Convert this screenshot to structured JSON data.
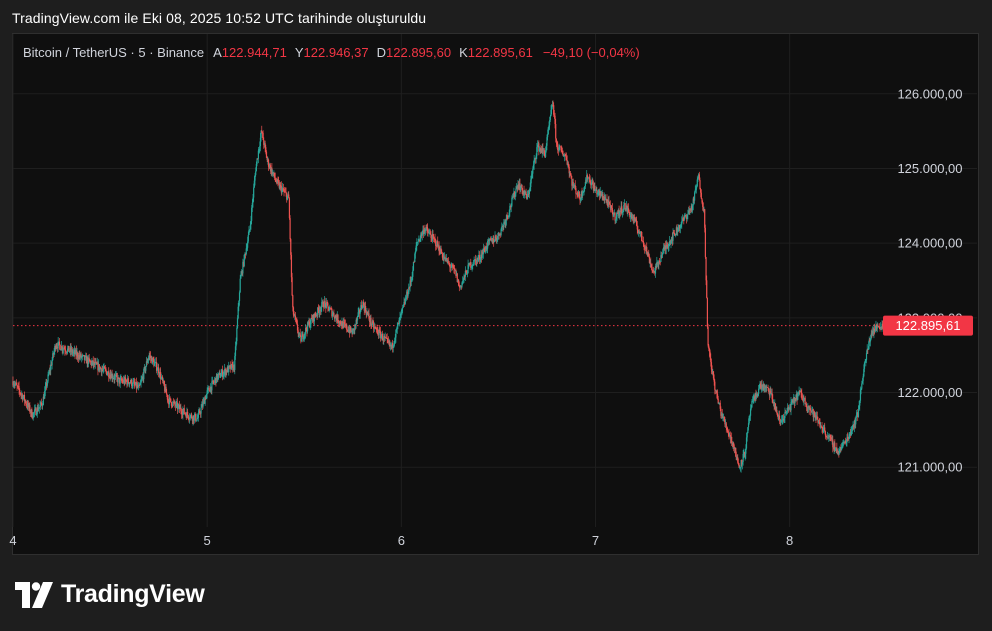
{
  "caption": "TradingView.com ile Eki 08, 2025 10:52 UTC tarihinde oluşturuldu",
  "legend": {
    "symbol": "Bitcoin / TetherUS · 5 · Binance",
    "open_label": "A",
    "open_value": "122.944,71",
    "high_label": "Y",
    "high_value": "122.946,37",
    "low_label": "D",
    "low_value": "122.895,60",
    "close_label": "K",
    "close_value": "122.895,61",
    "change": "−49,10 (−0,04%)"
  },
  "brand": {
    "name": "TradingView"
  },
  "colors": {
    "up": "#26a69a",
    "down": "#ef5350",
    "price_line": "#f23645",
    "grid": "#1f1f1f",
    "background": "#0f0f0f"
  },
  "chart_data": {
    "type": "candlestick",
    "symbol": "Bitcoin / TetherUS",
    "interval": "5",
    "exchange": "Binance",
    "x_ticks": [
      "4",
      "5",
      "6",
      "7",
      "8"
    ],
    "y_ticks": [
      "121.000,00",
      "122.000,00",
      "123.000,00",
      "124.000,00",
      "125.000,00",
      "126.000,00"
    ],
    "y_tick_values": [
      121000,
      122000,
      123000,
      124000,
      125000,
      126000
    ],
    "ylim": [
      120200,
      126800
    ],
    "xlim_days": [
      4.0,
      8.97
    ],
    "last_price": 122895.61,
    "last_price_label": "122.895,61",
    "grid": true,
    "price_path": [
      [
        4.0,
        122150
      ],
      [
        4.05,
        121950
      ],
      [
        4.1,
        121700
      ],
      [
        4.15,
        121850
      ],
      [
        4.22,
        122650
      ],
      [
        4.3,
        122550
      ],
      [
        4.4,
        122400
      ],
      [
        4.5,
        122250
      ],
      [
        4.55,
        122150
      ],
      [
        4.6,
        122150
      ],
      [
        4.65,
        122050
      ],
      [
        4.7,
        122500
      ],
      [
        4.75,
        122300
      ],
      [
        4.8,
        121900
      ],
      [
        4.85,
        121800
      ],
      [
        4.9,
        121700
      ],
      [
        4.95,
        121650
      ],
      [
        5.0,
        122000
      ],
      [
        5.05,
        122200
      ],
      [
        5.1,
        122300
      ],
      [
        5.14,
        122350
      ],
      [
        5.17,
        123500
      ],
      [
        5.22,
        124200
      ],
      [
        5.25,
        125000
      ],
      [
        5.28,
        125500
      ],
      [
        5.31,
        125100
      ],
      [
        5.36,
        124800
      ],
      [
        5.42,
        124600
      ],
      [
        5.44,
        123100
      ],
      [
        5.48,
        122700
      ],
      [
        5.52,
        122900
      ],
      [
        5.6,
        123200
      ],
      [
        5.7,
        122900
      ],
      [
        5.75,
        122800
      ],
      [
        5.8,
        123200
      ],
      [
        5.85,
        122900
      ],
      [
        5.9,
        122750
      ],
      [
        5.95,
        122600
      ],
      [
        6.0,
        123050
      ],
      [
        6.05,
        123500
      ],
      [
        6.08,
        124000
      ],
      [
        6.12,
        124200
      ],
      [
        6.18,
        124000
      ],
      [
        6.22,
        123800
      ],
      [
        6.28,
        123600
      ],
      [
        6.3,
        123400
      ],
      [
        6.35,
        123700
      ],
      [
        6.4,
        123800
      ],
      [
        6.45,
        124000
      ],
      [
        6.5,
        124100
      ],
      [
        6.55,
        124400
      ],
      [
        6.6,
        124800
      ],
      [
        6.65,
        124600
      ],
      [
        6.7,
        125300
      ],
      [
        6.74,
        125200
      ],
      [
        6.78,
        125900
      ],
      [
        6.8,
        125300
      ],
      [
        6.85,
        125150
      ],
      [
        6.88,
        124800
      ],
      [
        6.92,
        124600
      ],
      [
        6.96,
        124900
      ],
      [
        7.0,
        124700
      ],
      [
        7.05,
        124600
      ],
      [
        7.1,
        124350
      ],
      [
        7.15,
        124500
      ],
      [
        7.2,
        124300
      ],
      [
        7.25,
        124000
      ],
      [
        7.3,
        123600
      ],
      [
        7.35,
        123900
      ],
      [
        7.4,
        124100
      ],
      [
        7.45,
        124300
      ],
      [
        7.5,
        124500
      ],
      [
        7.53,
        124900
      ],
      [
        7.56,
        124400
      ],
      [
        7.58,
        122600
      ],
      [
        7.62,
        122000
      ],
      [
        7.65,
        121700
      ],
      [
        7.68,
        121500
      ],
      [
        7.71,
        121300
      ],
      [
        7.74,
        121000
      ],
      [
        7.77,
        121200
      ],
      [
        7.8,
        121800
      ],
      [
        7.85,
        122100
      ],
      [
        7.9,
        122000
      ],
      [
        7.95,
        121600
      ],
      [
        8.0,
        121800
      ],
      [
        8.05,
        122000
      ],
      [
        8.1,
        121800
      ],
      [
        8.15,
        121600
      ],
      [
        8.2,
        121400
      ],
      [
        8.25,
        121200
      ],
      [
        8.3,
        121400
      ],
      [
        8.35,
        121700
      ],
      [
        8.38,
        122300
      ],
      [
        8.42,
        122800
      ],
      [
        8.46,
        122900
      ],
      [
        8.49,
        122895.61
      ]
    ]
  }
}
